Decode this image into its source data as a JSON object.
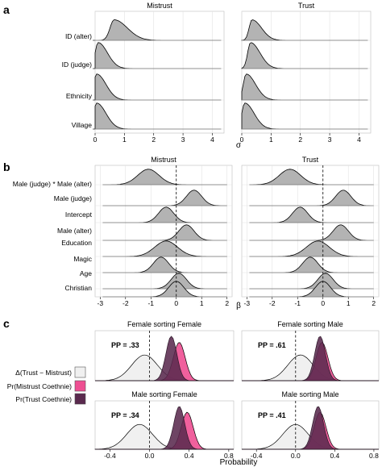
{
  "panel_letters": [
    "a",
    "b",
    "c"
  ],
  "chart_data": [
    {
      "panel": "a",
      "type": "area",
      "subtype": "ridgeline",
      "facets": [
        "Mistrust",
        "Trust"
      ],
      "rows": [
        "ID (alter)",
        "ID (judge)",
        "Ethnicity",
        "Village"
      ],
      "xlabel": "σ",
      "xlim": [
        0,
        4.4
      ],
      "xticks": [
        0,
        1,
        2,
        3,
        4
      ],
      "fill_color": "#b3b3b3",
      "peaks": {
        "Mistrust": [
          0.65,
          0.1,
          0.05,
          0.05
        ],
        "Trust": [
          0.35,
          0.3,
          0.15,
          0.1
        ]
      }
    },
    {
      "panel": "b",
      "type": "area",
      "subtype": "ridgeline",
      "facets": [
        "Mistrust",
        "Trust"
      ],
      "rows": [
        "Male (judge) * Male (alter)",
        "Male (judge)",
        "Intercept",
        "Male (alter)",
        "Education",
        "Magic",
        "Age",
        "Christian"
      ],
      "xlabel": "β",
      "xlim": [
        -3.2,
        2.2
      ],
      "xticks": [
        -3,
        -2,
        -1,
        0,
        1,
        2
      ],
      "reference_line": 0,
      "fill_color": "#b3b3b3",
      "peaks": {
        "Mistrust": [
          -1.1,
          0.7,
          -0.4,
          0.4,
          -0.4,
          -0.6,
          0.1,
          0.0
        ],
        "Trust": [
          -1.3,
          0.8,
          -0.9,
          0.7,
          -0.2,
          -0.5,
          0.1,
          0.0
        ]
      }
    },
    {
      "panel": "c",
      "type": "area",
      "subtype": "density",
      "facets": [
        "Female sorting Female",
        "Female sorting Male",
        "Male sorting Female",
        "Male sorting Male"
      ],
      "xlabel": "Probability",
      "xlim": [
        -0.55,
        0.85
      ],
      "xticks": [
        -0.4,
        0.0,
        0.4,
        0.8
      ],
      "xtick_labels": [
        "-0.4",
        "0.0",
        "0.4",
        "0.8"
      ],
      "reference_line": 0,
      "pp_labels": [
        "PP = .33",
        "PP = .61",
        "PP = .34",
        "PP = .41"
      ],
      "legend": {
        "position": "left",
        "entries": [
          {
            "label": "Δ(Trust − Mistrust)",
            "color": "#f0f0f0"
          },
          {
            "label": "Pr(Mistrust Coethnie)",
            "color": "#ee4f92"
          },
          {
            "label": "Pr(Trust Coethnie)",
            "color": "#5a2a4e"
          }
        ]
      },
      "series_peaks": {
        "delta": [
          -0.05,
          0.05,
          -0.1,
          0.0
        ],
        "mistrust": [
          0.3,
          0.27,
          0.38,
          0.25
        ],
        "trust": [
          0.22,
          0.25,
          0.3,
          0.23
        ]
      }
    }
  ]
}
